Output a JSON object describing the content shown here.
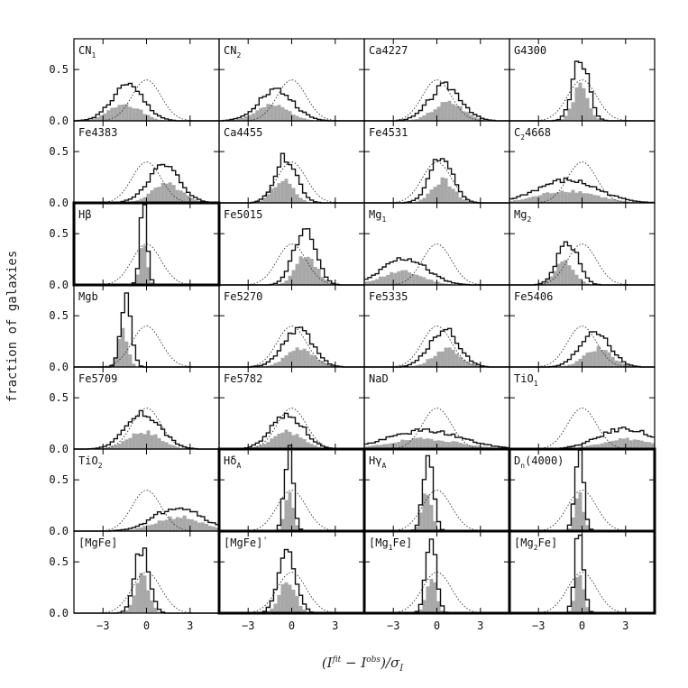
{
  "chart_data": {
    "type": "histogram-grid",
    "ylabel": "fraction of galaxies",
    "xlabel": "(I",
    "xlabel_sup1": "fit",
    "xlabel_mid": " − I",
    "xlabel_sup2": "obs",
    "xlabel_end": ")/σ",
    "xlabel_sub": "I",
    "x_ticks": [
      "−3",
      "0",
      "3"
    ],
    "y_ticks": [
      "0.0",
      "0.5"
    ],
    "xlim": [
      -5,
      5
    ],
    "ylim": [
      0,
      0.8
    ],
    "bin_width": 0.25,
    "reference_curve": "normal distribution (dotted)",
    "panels": [
      {
        "label": "CN",
        "sub": "1",
        "sup": "",
        "rest": "",
        "mu": -1.3,
        "sd": 1.1,
        "amp": 0.34,
        "famp": 0.17,
        "fshift": -0.2,
        "bold": false
      },
      {
        "label": "CN",
        "sub": "2",
        "sup": "",
        "rest": "",
        "mu": -1.1,
        "sd": 1.2,
        "amp": 0.3,
        "famp": 0.15,
        "fshift": -0.2,
        "bold": false
      },
      {
        "label": "Ca4227",
        "sub": "",
        "sup": "",
        "rest": "",
        "mu": 0.6,
        "sd": 1.1,
        "amp": 0.34,
        "famp": 0.18,
        "fshift": 0.2,
        "bold": false
      },
      {
        "label": "G4300",
        "sub": "",
        "sup": "",
        "rest": "",
        "mu": -0.1,
        "sd": 0.55,
        "amp": 0.62,
        "famp": 0.35,
        "fshift": 0.0,
        "bold": false
      },
      {
        "label": "Fe4383",
        "sub": "",
        "sup": "",
        "rest": "",
        "mu": 1.2,
        "sd": 1.1,
        "amp": 0.36,
        "famp": 0.18,
        "fshift": 0.2,
        "bold": false
      },
      {
        "label": "Ca4455",
        "sub": "",
        "sup": "",
        "rest": "",
        "mu": -0.4,
        "sd": 0.75,
        "amp": 0.45,
        "famp": 0.22,
        "fshift": -0.2,
        "bold": false
      },
      {
        "label": "Fe4531",
        "sub": "",
        "sup": "",
        "rest": "",
        "mu": 0.3,
        "sd": 0.8,
        "amp": 0.44,
        "famp": 0.22,
        "fshift": 0.1,
        "bold": false
      },
      {
        "label": "C",
        "sub": "2",
        "sup": "",
        "rest": "4668",
        "mu": -1.0,
        "sd": 2.1,
        "amp": 0.22,
        "famp": 0.12,
        "fshift": 0.0,
        "bold": false
      },
      {
        "label": "Hβ",
        "sub": "",
        "sup": "",
        "rest": "",
        "mu": -0.2,
        "sd": 0.25,
        "amp": 0.76,
        "famp": 0.45,
        "fshift": 0.0,
        "bold": true
      },
      {
        "label": "Fe5015",
        "sub": "",
        "sup": "",
        "rest": "",
        "mu": 0.9,
        "sd": 0.75,
        "amp": 0.56,
        "famp": 0.3,
        "fshift": 0.1,
        "bold": false
      },
      {
        "label": "Mg",
        "sub": "1",
        "sup": "",
        "rest": "",
        "mu": -2.2,
        "sd": 1.5,
        "amp": 0.26,
        "famp": 0.13,
        "fshift": -0.2,
        "bold": false
      },
      {
        "label": "Mg",
        "sub": "2",
        "sup": "",
        "rest": "",
        "mu": -1.0,
        "sd": 0.7,
        "amp": 0.44,
        "famp": 0.22,
        "fshift": -0.2,
        "bold": false
      },
      {
        "label": "Mgb",
        "sub": "",
        "sup": "",
        "rest": "",
        "mu": -1.4,
        "sd": 0.35,
        "amp": 0.72,
        "famp": 0.36,
        "fshift": -0.2,
        "bold": false
      },
      {
        "label": "Fe5270",
        "sub": "",
        "sup": "",
        "rest": "",
        "mu": 0.4,
        "sd": 1.0,
        "amp": 0.38,
        "famp": 0.19,
        "fshift": 0.2,
        "bold": false
      },
      {
        "label": "Fe5335",
        "sub": "",
        "sup": "",
        "rest": "",
        "mu": 0.5,
        "sd": 1.0,
        "amp": 0.36,
        "famp": 0.18,
        "fshift": 0.2,
        "bold": false
      },
      {
        "label": "Fe5406",
        "sub": "",
        "sup": "",
        "rest": "",
        "mu": 0.9,
        "sd": 1.0,
        "amp": 0.36,
        "famp": 0.18,
        "fshift": 0.2,
        "bold": false
      },
      {
        "label": "Fe5709",
        "sub": "",
        "sup": "",
        "rest": "",
        "mu": -0.2,
        "sd": 1.2,
        "amp": 0.34,
        "famp": 0.17,
        "fshift": 0.0,
        "bold": false
      },
      {
        "label": "Fe5782",
        "sub": "",
        "sup": "",
        "rest": "",
        "mu": -0.3,
        "sd": 1.1,
        "amp": 0.34,
        "famp": 0.17,
        "fshift": 0.0,
        "bold": false
      },
      {
        "label": "NaD",
        "sub": "",
        "sup": "",
        "rest": "",
        "mu": -0.8,
        "sd": 2.5,
        "amp": 0.18,
        "famp": 0.1,
        "fshift": 0.0,
        "bold": false
      },
      {
        "label": "TiO",
        "sub": "1",
        "sup": "",
        "rest": "",
        "mu": 3.0,
        "sd": 1.8,
        "amp": 0.2,
        "famp": 0.1,
        "fshift": 0.0,
        "bold": false
      },
      {
        "label": "TiO",
        "sub": "2",
        "sup": "",
        "rest": "",
        "mu": 2.2,
        "sd": 1.6,
        "amp": 0.24,
        "famp": 0.14,
        "fshift": 0.0,
        "bold": false
      },
      {
        "label": "Hδ",
        "sub": "A",
        "sup": "",
        "rest": "",
        "mu": -0.2,
        "sd": 0.3,
        "amp": 0.78,
        "famp": 0.4,
        "fshift": 0.0,
        "bold": true
      },
      {
        "label": "Hγ",
        "sub": "A",
        "sup": "",
        "rest": "",
        "mu": -0.6,
        "sd": 0.35,
        "amp": 0.72,
        "famp": 0.38,
        "fshift": -0.1,
        "bold": true
      },
      {
        "label": "D",
        "sub": "n",
        "sup": "",
        "rest": "(4000)",
        "mu": -0.2,
        "sd": 0.3,
        "amp": 0.76,
        "famp": 0.4,
        "fshift": 0.0,
        "bold": true
      },
      {
        "label": "[MgFe]",
        "sub": "",
        "sup": "",
        "rest": "",
        "mu": -0.3,
        "sd": 0.5,
        "amp": 0.64,
        "famp": 0.35,
        "fshift": 0.0,
        "bold": false
      },
      {
        "label": "[MgFe]",
        "sub": "",
        "sup": "'",
        "rest": "",
        "mu": -0.3,
        "sd": 0.6,
        "amp": 0.6,
        "famp": 0.3,
        "fshift": 0.0,
        "bold": true
      },
      {
        "label": "[Mg",
        "sub": "1",
        "sup": "",
        "rest": "Fe]",
        "mu": -0.4,
        "sd": 0.35,
        "amp": 0.76,
        "famp": 0.38,
        "fshift": 0.0,
        "bold": true
      },
      {
        "label": "[Mg",
        "sub": "2",
        "sup": "",
        "rest": "Fe]",
        "mu": -0.2,
        "sd": 0.3,
        "amp": 0.78,
        "famp": 0.4,
        "fshift": 0.0,
        "bold": true
      }
    ]
  }
}
